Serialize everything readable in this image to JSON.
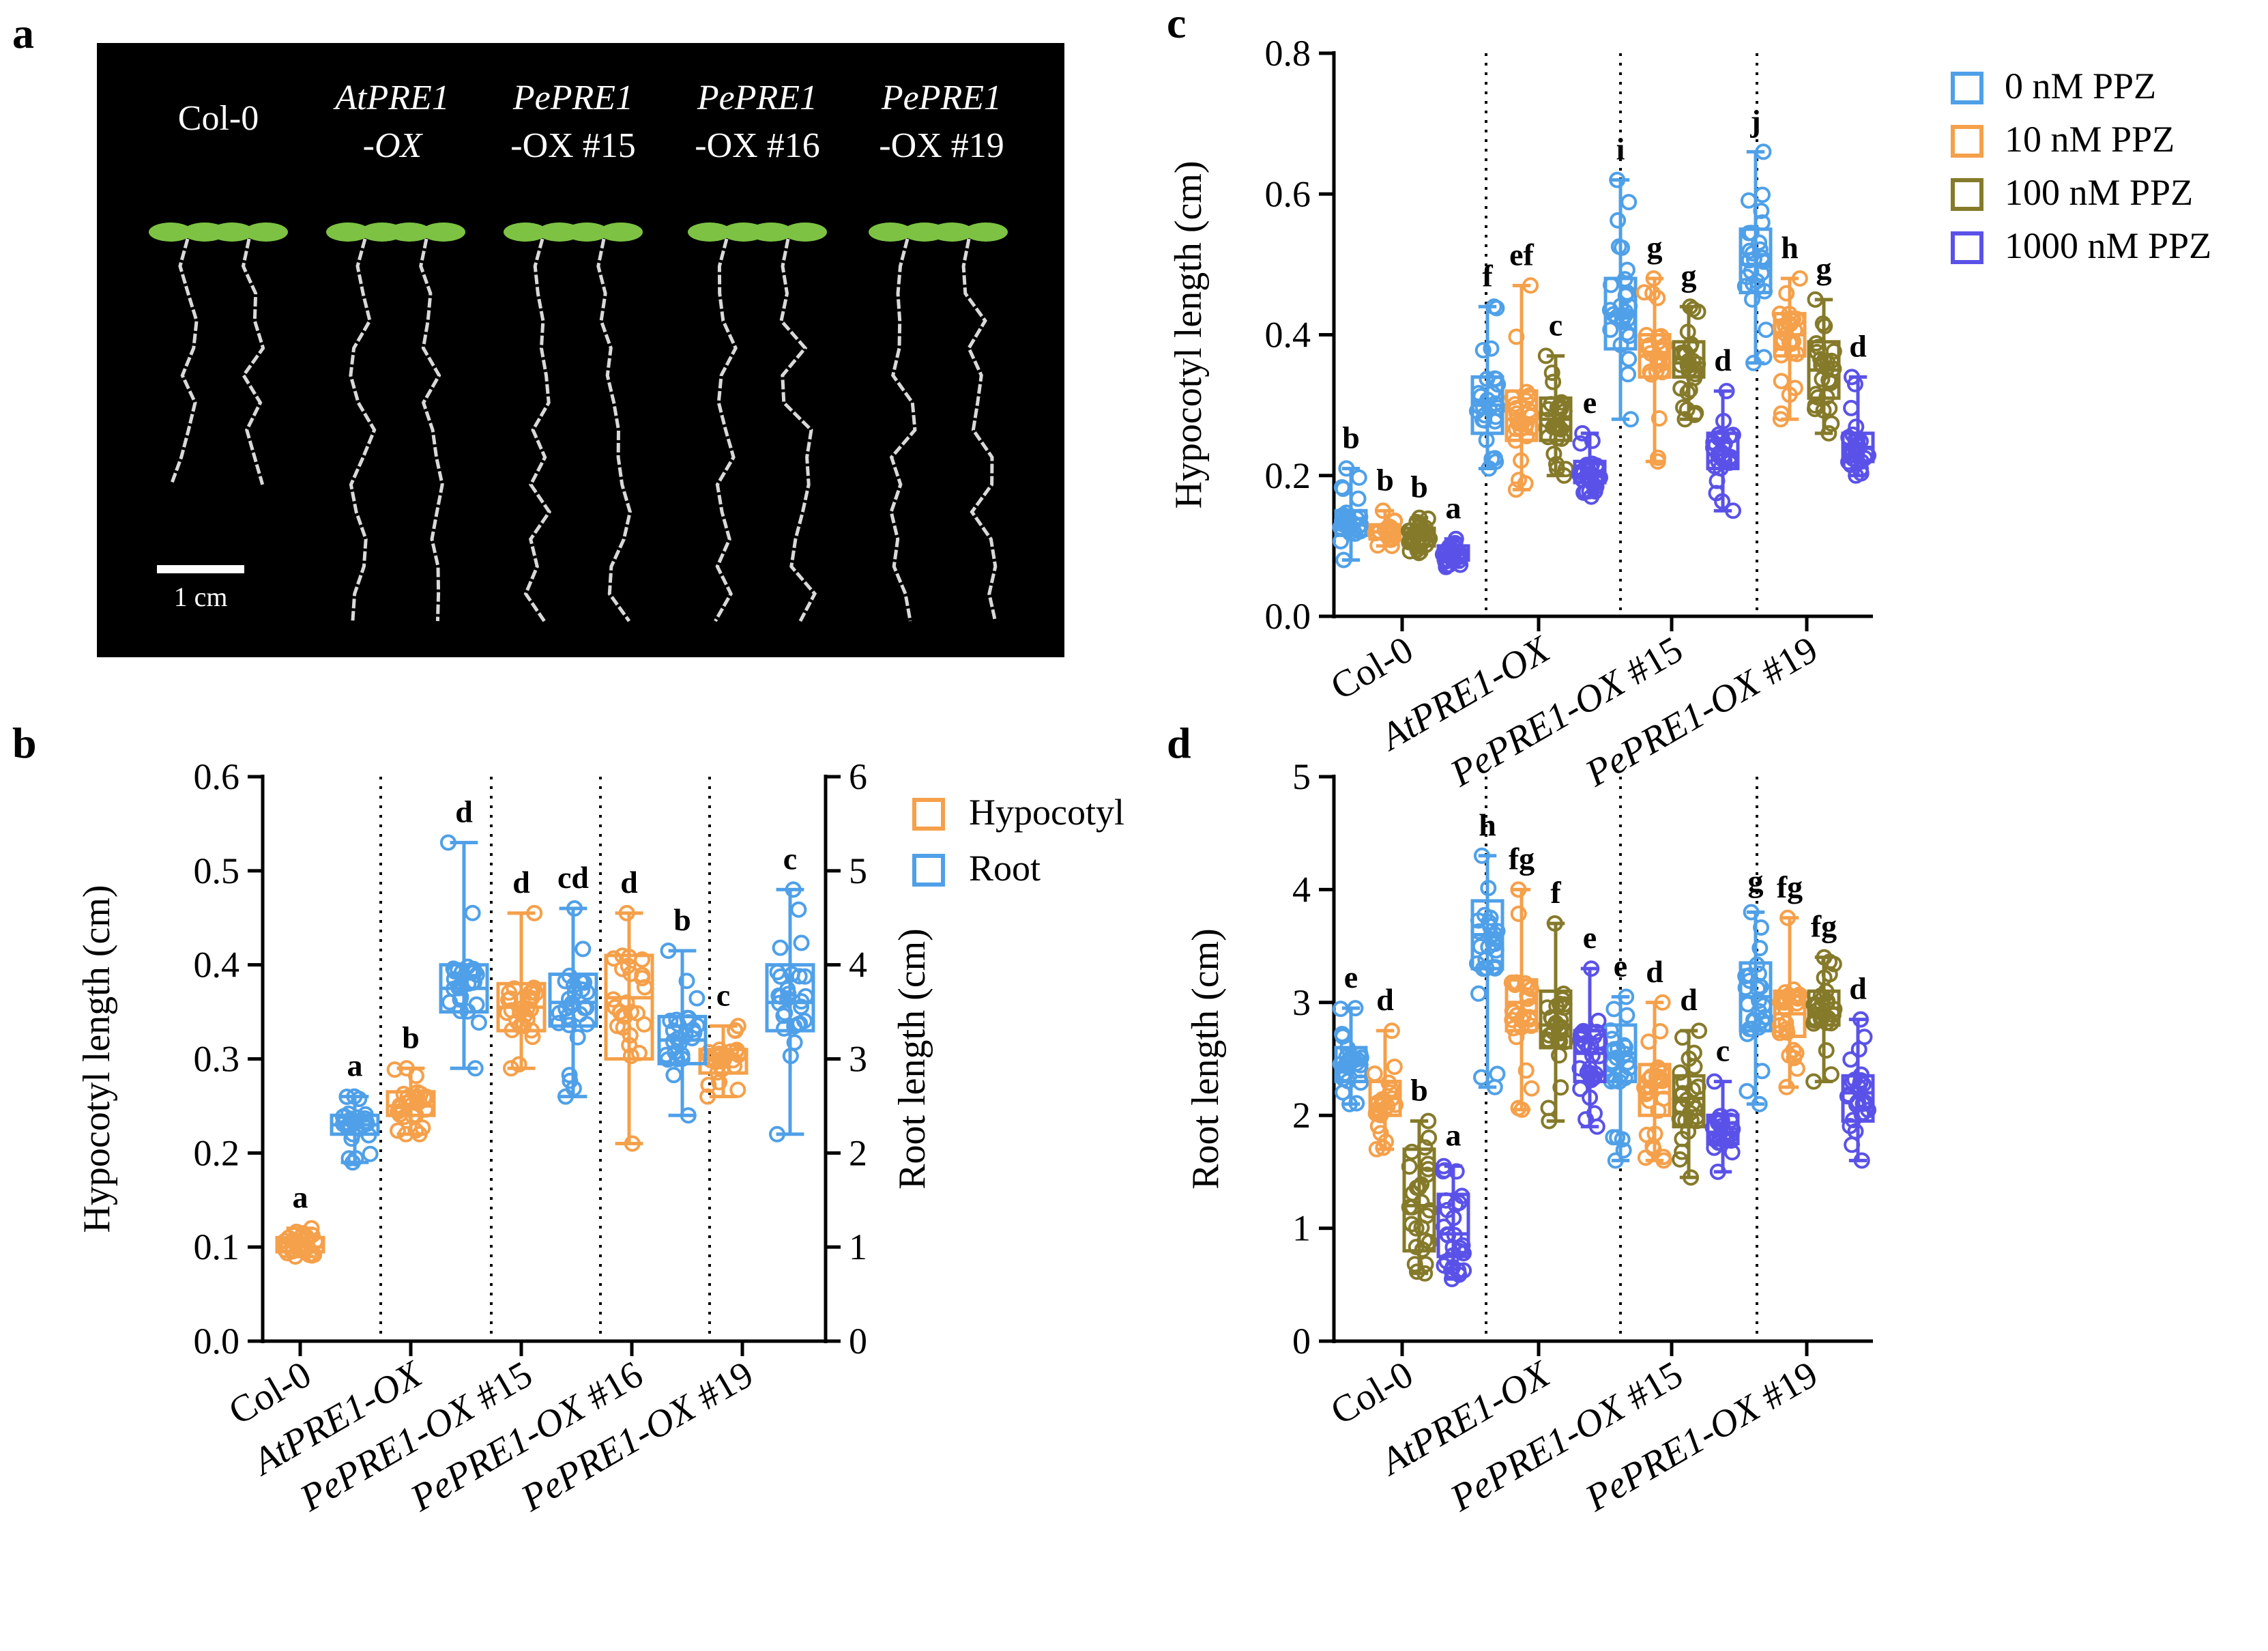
{
  "figure": {
    "panel_labels": {
      "a": "a",
      "b": "b",
      "c": "c",
      "d": "d"
    }
  },
  "photo": {
    "labels": [
      {
        "line1": "Col-0",
        "line2": ""
      },
      {
        "line1": "AtPRE1",
        "line2": "-OX"
      },
      {
        "line1": "PePRE1",
        "line2": "-OX #15"
      },
      {
        "line1": "PePRE1",
        "line2": "-OX #16"
      },
      {
        "line1": "PePRE1",
        "line2": "-OX #19"
      }
    ],
    "scale_bar_label": "1 cm",
    "background_color": "#000000",
    "leaf_color": "#7dc242",
    "root_color": "#d9d9d9"
  },
  "colors": {
    "hypocotyl": "#f5a04a",
    "root": "#4fa0e8",
    "ppz_0": "#4fa0e8",
    "ppz_10": "#f5a04a",
    "ppz_100": "#857a2a",
    "ppz_1000": "#5a52e8"
  },
  "chart_data": [
    {
      "panel": "b",
      "type": "box",
      "categories": [
        "Col-0",
        "AtPRE1-OX",
        "PePRE1-OX #15",
        "PePRE1-OX #16",
        "PePRE1-OX #19"
      ],
      "ylabel": "Hypocotyl length (cm)",
      "ylim": [
        0,
        0.6
      ],
      "yticks": [
        "0.0",
        "0.1",
        "0.2",
        "0.3",
        "0.4",
        "0.5",
        "0.6"
      ],
      "y2label": "Root length (cm)",
      "y2lim": [
        0,
        6
      ],
      "y2ticks": [
        "0",
        "1",
        "2",
        "3",
        "4",
        "5",
        "6"
      ],
      "legend": [
        "Hypocotyl",
        "Root"
      ],
      "series": [
        {
          "name": "Hypocotyl",
          "axis": "left",
          "boxes": [
            {
              "min": 0.09,
              "q1": 0.095,
              "median": 0.1,
              "q3": 0.11,
              "max": 0.12,
              "letter": "a"
            },
            {
              "min": 0.22,
              "q1": 0.24,
              "median": 0.25,
              "q3": 0.265,
              "max": 0.29,
              "letter": "b"
            },
            {
              "min": 0.29,
              "q1": 0.33,
              "median": 0.355,
              "q3": 0.38,
              "max": 0.455,
              "letter": "d"
            },
            {
              "min": 0.21,
              "q1": 0.3,
              "median": 0.365,
              "q3": 0.41,
              "max": 0.455,
              "letter": "d"
            },
            {
              "min": 0.26,
              "q1": 0.285,
              "median": 0.3,
              "q3": 0.31,
              "max": 0.335,
              "letter": "c"
            }
          ]
        },
        {
          "name": "Root",
          "axis": "right",
          "boxes": [
            {
              "min": 1.9,
              "q1": 2.2,
              "median": 2.3,
              "q3": 2.4,
              "max": 2.6,
              "letter": "a"
            },
            {
              "min": 2.9,
              "q1": 3.5,
              "median": 3.75,
              "q3": 4.0,
              "max": 5.3,
              "letter": "d"
            },
            {
              "min": 2.6,
              "q1": 3.35,
              "median": 3.6,
              "q3": 3.9,
              "max": 4.6,
              "letter": "cd"
            },
            {
              "min": 2.4,
              "q1": 2.95,
              "median": 3.2,
              "q3": 3.45,
              "max": 4.15,
              "letter": "b"
            },
            {
              "min": 2.2,
              "q1": 3.3,
              "median": 3.6,
              "q3": 4.0,
              "max": 4.8,
              "letter": "c"
            }
          ]
        }
      ]
    },
    {
      "panel": "c",
      "type": "box",
      "categories": [
        "Col-0",
        "AtPRE1-OX",
        "PePRE1-OX #15",
        "PePRE1-OX #19"
      ],
      "ylabel": "Hypocotyl length (cm)",
      "ylim": [
        0,
        0.8
      ],
      "yticks": [
        "0.0",
        "0.2",
        "0.4",
        "0.6",
        "0.8"
      ],
      "legend": [
        "0 nM PPZ",
        "10 nM PPZ",
        "100 nM PPZ",
        "1000 nM PPZ"
      ],
      "series": [
        {
          "name": "0 nM PPZ",
          "boxes": [
            {
              "min": 0.08,
              "q1": 0.115,
              "median": 0.13,
              "q3": 0.15,
              "max": 0.21,
              "letter": "b"
            },
            {
              "min": 0.21,
              "q1": 0.26,
              "median": 0.3,
              "q3": 0.34,
              "max": 0.44,
              "letter": "f"
            },
            {
              "min": 0.28,
              "q1": 0.38,
              "median": 0.43,
              "q3": 0.48,
              "max": 0.62,
              "letter": "i"
            },
            {
              "min": 0.36,
              "q1": 0.46,
              "median": 0.5,
              "q3": 0.55,
              "max": 0.66,
              "letter": "j"
            }
          ]
        },
        {
          "name": "10 nM PPZ",
          "boxes": [
            {
              "min": 0.1,
              "q1": 0.11,
              "median": 0.12,
              "q3": 0.13,
              "max": 0.15,
              "letter": "b"
            },
            {
              "min": 0.18,
              "q1": 0.25,
              "median": 0.28,
              "q3": 0.32,
              "max": 0.47,
              "letter": "ef"
            },
            {
              "min": 0.22,
              "q1": 0.34,
              "median": 0.37,
              "q3": 0.4,
              "max": 0.48,
              "letter": "g"
            },
            {
              "min": 0.28,
              "q1": 0.37,
              "median": 0.4,
              "q3": 0.43,
              "max": 0.48,
              "letter": "h"
            }
          ]
        },
        {
          "name": "100 nM PPZ",
          "boxes": [
            {
              "min": 0.09,
              "q1": 0.1,
              "median": 0.11,
              "q3": 0.125,
              "max": 0.14,
              "letter": "b"
            },
            {
              "min": 0.2,
              "q1": 0.25,
              "median": 0.28,
              "q3": 0.31,
              "max": 0.37,
              "letter": "c"
            },
            {
              "min": 0.28,
              "q1": 0.34,
              "median": 0.36,
              "q3": 0.39,
              "max": 0.44,
              "letter": "g"
            },
            {
              "min": 0.26,
              "q1": 0.31,
              "median": 0.35,
              "q3": 0.39,
              "max": 0.45,
              "letter": "g"
            }
          ]
        },
        {
          "name": "1000 nM PPZ",
          "boxes": [
            {
              "min": 0.07,
              "q1": 0.08,
              "median": 0.09,
              "q3": 0.1,
              "max": 0.11,
              "letter": "a"
            },
            {
              "min": 0.17,
              "q1": 0.19,
              "median": 0.2,
              "q3": 0.22,
              "max": 0.26,
              "letter": "e"
            },
            {
              "min": 0.15,
              "q1": 0.21,
              "median": 0.23,
              "q3": 0.26,
              "max": 0.32,
              "letter": "d"
            },
            {
              "min": 0.2,
              "q1": 0.22,
              "median": 0.24,
              "q3": 0.26,
              "max": 0.34,
              "letter": "d"
            }
          ]
        }
      ]
    },
    {
      "panel": "d",
      "type": "box",
      "categories": [
        "Col-0",
        "AtPRE1-OX",
        "PePRE1-OX #15",
        "PePRE1-OX #19"
      ],
      "ylabel": "Root length (cm)",
      "ylim": [
        0,
        5
      ],
      "yticks": [
        "0",
        "1",
        "2",
        "3",
        "4",
        "5"
      ],
      "series": [
        {
          "name": "0 nM PPZ",
          "boxes": [
            {
              "min": 2.1,
              "q1": 2.3,
              "median": 2.45,
              "q3": 2.6,
              "max": 2.95,
              "letter": "e"
            },
            {
              "min": 2.25,
              "q1": 3.3,
              "median": 3.6,
              "q3": 3.9,
              "max": 4.3,
              "letter": "h"
            },
            {
              "min": 1.6,
              "q1": 2.3,
              "median": 2.55,
              "q3": 2.8,
              "max": 3.05,
              "letter": "e"
            },
            {
              "min": 2.1,
              "q1": 2.75,
              "median": 3.05,
              "q3": 3.35,
              "max": 3.8,
              "letter": "g"
            }
          ]
        },
        {
          "name": "10 nM PPZ",
          "boxes": [
            {
              "min": 1.7,
              "q1": 2.0,
              "median": 2.15,
              "q3": 2.3,
              "max": 2.75,
              "letter": "d"
            },
            {
              "min": 2.05,
              "q1": 2.75,
              "median": 3.0,
              "q3": 3.2,
              "max": 4.0,
              "letter": "fg"
            },
            {
              "min": 1.6,
              "q1": 2.0,
              "median": 2.2,
              "q3": 2.45,
              "max": 3.0,
              "letter": "d"
            },
            {
              "min": 2.25,
              "q1": 2.7,
              "median": 2.9,
              "q3": 3.1,
              "max": 3.75,
              "letter": "fg"
            }
          ]
        },
        {
          "name": "100 nM PPZ",
          "boxes": [
            {
              "min": 0.6,
              "q1": 0.8,
              "median": 1.2,
              "q3": 1.7,
              "max": 1.95,
              "letter": "b"
            },
            {
              "min": 1.95,
              "q1": 2.6,
              "median": 2.8,
              "q3": 3.1,
              "max": 3.7,
              "letter": "f"
            },
            {
              "min": 1.45,
              "q1": 1.9,
              "median": 2.15,
              "q3": 2.35,
              "max": 2.75,
              "letter": "d"
            },
            {
              "min": 2.3,
              "q1": 2.8,
              "median": 2.95,
              "q3": 3.1,
              "max": 3.4,
              "letter": "fg"
            }
          ]
        },
        {
          "name": "1000 nM PPZ",
          "boxes": [
            {
              "min": 0.55,
              "q1": 0.75,
              "median": 0.95,
              "q3": 1.3,
              "max": 1.55,
              "letter": "a"
            },
            {
              "min": 1.9,
              "q1": 2.3,
              "median": 2.55,
              "q3": 2.75,
              "max": 3.3,
              "letter": "e"
            },
            {
              "min": 1.5,
              "q1": 1.75,
              "median": 1.85,
              "q3": 2.0,
              "max": 2.3,
              "letter": "c"
            },
            {
              "min": 1.6,
              "q1": 1.95,
              "median": 2.2,
              "q3": 2.35,
              "max": 2.85,
              "letter": "d"
            }
          ]
        }
      ]
    }
  ]
}
